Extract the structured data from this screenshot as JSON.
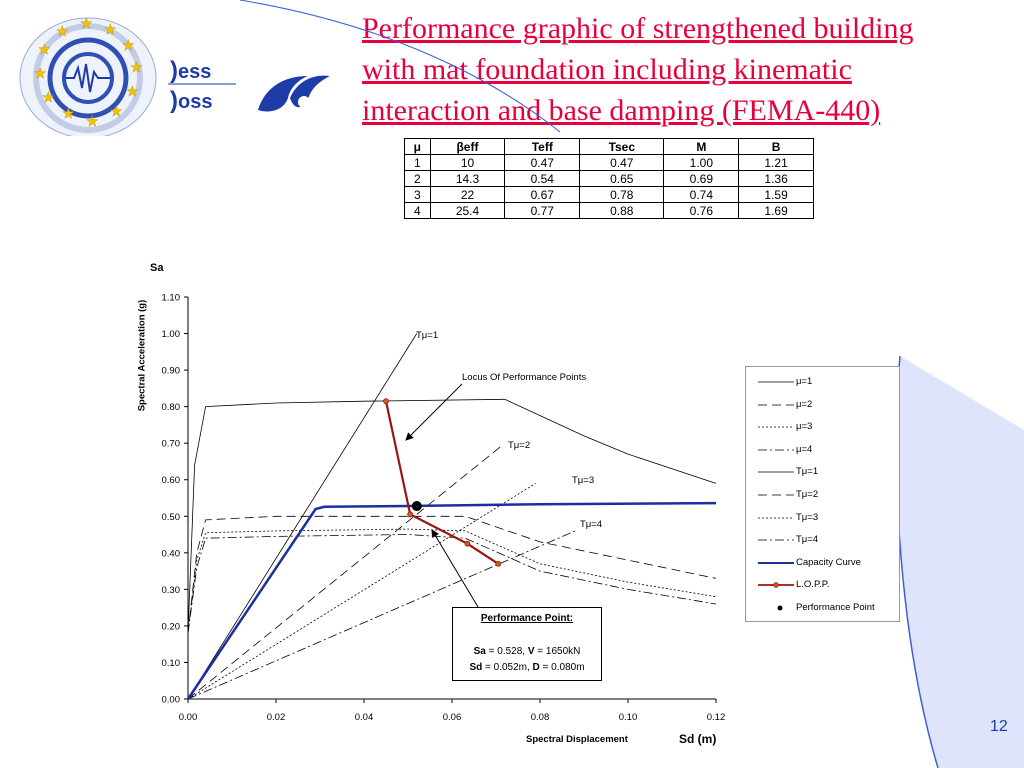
{
  "header": {
    "logo_text_top": "ess",
    "logo_text_bottom": "oss",
    "title_lines": [
      "Performance graphic of strengthened building",
      "with mat foundation including kinematic",
      "interaction and base damping (FEMA-440)"
    ]
  },
  "params_table": {
    "columns": [
      "μ",
      "βeff",
      "Teff",
      "Tsec",
      "M",
      "B"
    ],
    "rows": [
      [
        "1",
        "10",
        "0.47",
        "0.47",
        "1.00",
        "1.21"
      ],
      [
        "2",
        "14.3",
        "0.54",
        "0.65",
        "0.69",
        "1.36"
      ],
      [
        "3",
        "22",
        "0.67",
        "0.78",
        "0.74",
        "1.59"
      ],
      [
        "4",
        "25.4",
        "0.77",
        "0.88",
        "0.76",
        "1.69"
      ]
    ]
  },
  "chart_data": {
    "type": "line",
    "title": "",
    "ylabel_top": "Sa",
    "ylabel": "Spectral Acceleration (g)",
    "xlabel": "Spectral Displacement",
    "xlabel_right": "Sd (m)",
    "xlim": [
      0,
      0.12
    ],
    "ylim": [
      0,
      1.1
    ],
    "x_ticks": [
      "0.00",
      "0.02",
      "0.04",
      "0.06",
      "0.08",
      "0.10",
      "0.12"
    ],
    "y_ticks": [
      "0.00",
      "0.10",
      "0.20",
      "0.30",
      "0.40",
      "0.50",
      "0.60",
      "0.70",
      "0.80",
      "0.90",
      "1.00",
      "1.10"
    ],
    "grid": false,
    "legend_position": "right",
    "series": [
      {
        "name": "μ=1",
        "style": "solid",
        "points": [
          [
            0,
            0.18
          ],
          [
            0.0015,
            0.64
          ],
          [
            0.004,
            0.8
          ],
          [
            0.02,
            0.81
          ],
          [
            0.04,
            0.815
          ],
          [
            0.072,
            0.82
          ],
          [
            0.09,
            0.72
          ],
          [
            0.1,
            0.67
          ],
          [
            0.12,
            0.59
          ]
        ]
      },
      {
        "name": "μ=2",
        "style": "dashed",
        "points": [
          [
            0,
            0.18
          ],
          [
            0.002,
            0.4
          ],
          [
            0.004,
            0.49
          ],
          [
            0.02,
            0.5
          ],
          [
            0.05,
            0.5
          ],
          [
            0.063,
            0.5
          ],
          [
            0.08,
            0.43
          ],
          [
            0.1,
            0.38
          ],
          [
            0.12,
            0.33
          ]
        ]
      },
      {
        "name": "μ=3",
        "style": "dotted",
        "points": [
          [
            0,
            0.18
          ],
          [
            0.002,
            0.38
          ],
          [
            0.004,
            0.455
          ],
          [
            0.02,
            0.46
          ],
          [
            0.05,
            0.465
          ],
          [
            0.063,
            0.46
          ],
          [
            0.08,
            0.37
          ],
          [
            0.1,
            0.32
          ],
          [
            0.12,
            0.28
          ]
        ]
      },
      {
        "name": "μ=4",
        "style": "dashdot",
        "points": [
          [
            0,
            0.18
          ],
          [
            0.002,
            0.36
          ],
          [
            0.004,
            0.44
          ],
          [
            0.02,
            0.445
          ],
          [
            0.05,
            0.45
          ],
          [
            0.063,
            0.44
          ],
          [
            0.08,
            0.35
          ],
          [
            0.1,
            0.3
          ],
          [
            0.12,
            0.26
          ]
        ]
      },
      {
        "name": "Tμ=1",
        "style": "solid",
        "points": [
          [
            0,
            0
          ],
          [
            0.052,
            1.0
          ]
        ]
      },
      {
        "name": "Tμ=2",
        "style": "dashed",
        "points": [
          [
            0,
            0
          ],
          [
            0.071,
            0.69
          ]
        ]
      },
      {
        "name": "Tμ=3",
        "style": "dotted",
        "points": [
          [
            0,
            0
          ],
          [
            0.079,
            0.59
          ]
        ]
      },
      {
        "name": "Tμ=4",
        "style": "dashdot",
        "points": [
          [
            0,
            0
          ],
          [
            0.088,
            0.46
          ]
        ]
      },
      {
        "name": "Capacity Curve",
        "style": "capacity",
        "points": [
          [
            0,
            0
          ],
          [
            0.029,
            0.52
          ],
          [
            0.031,
            0.526
          ],
          [
            0.05,
            0.528
          ],
          [
            0.08,
            0.533
          ],
          [
            0.12,
            0.536
          ]
        ]
      },
      {
        "name": "L.O.P.P.",
        "style": "lopp",
        "points": [
          [
            0.045,
            0.815
          ],
          [
            0.0505,
            0.505
          ],
          [
            0.0635,
            0.425
          ],
          [
            0.0705,
            0.37
          ]
        ]
      },
      {
        "name": "Performance Point",
        "style": "point",
        "points": [
          [
            0.052,
            0.528
          ]
        ]
      }
    ],
    "annotations": {
      "t1": "Tμ=1",
      "t2": "Tμ=2",
      "t3": "Tμ=3",
      "t4": "Tμ=4",
      "locus": "Locus Of Performance Points"
    },
    "performance_point": {
      "heading": "Performance Point:",
      "sa_label": "Sa",
      "sa_value": " = 0.528, ",
      "v_label": "V",
      "v_value": " = 1650kN",
      "sd_label": "Sd",
      "sd_value": " = 0.052m, ",
      "d_label": "D",
      "d_value": " = 0.080m"
    }
  },
  "footer": {
    "page_number": "12"
  },
  "colors": {
    "title": "#e8003a",
    "capacity": "#1c2f9c",
    "lopp": "#9a1410",
    "accent_blue": "#3d5fd6"
  }
}
